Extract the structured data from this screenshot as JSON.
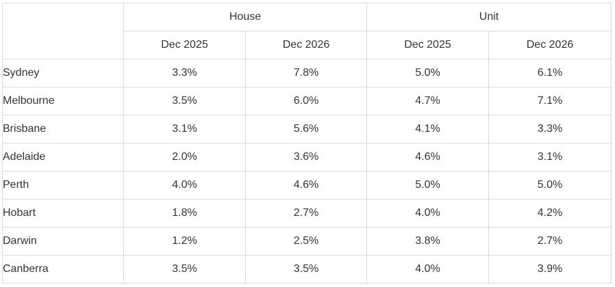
{
  "table": {
    "corner": "",
    "groups": [
      "House",
      "Unit"
    ],
    "periods": [
      "Dec 2025",
      "Dec 2026",
      "Dec 2025",
      "Dec 2026"
    ],
    "rows": [
      {
        "city": "Sydney",
        "values": [
          "3.3%",
          "7.8%",
          "5.0%",
          "6.1%"
        ]
      },
      {
        "city": "Melbourne",
        "values": [
          "3.5%",
          "6.0%",
          "4.7%",
          "7.1%"
        ]
      },
      {
        "city": "Brisbane",
        "values": [
          "3.1%",
          "5.6%",
          "4.1%",
          "3.3%"
        ]
      },
      {
        "city": "Adelaide",
        "values": [
          "2.0%",
          "3.6%",
          "4.6%",
          "3.1%"
        ]
      },
      {
        "city": "Perth",
        "values": [
          "4.0%",
          "4.6%",
          "5.0%",
          "5.0%"
        ]
      },
      {
        "city": "Hobart",
        "values": [
          "1.8%",
          "2.7%",
          "4.0%",
          "4.2%"
        ]
      },
      {
        "city": "Darwin",
        "values": [
          "1.2%",
          "2.5%",
          "3.8%",
          "2.7%"
        ]
      },
      {
        "city": "Canberra",
        "values": [
          "3.5%",
          "3.5%",
          "4.0%",
          "3.9%"
        ]
      }
    ]
  }
}
